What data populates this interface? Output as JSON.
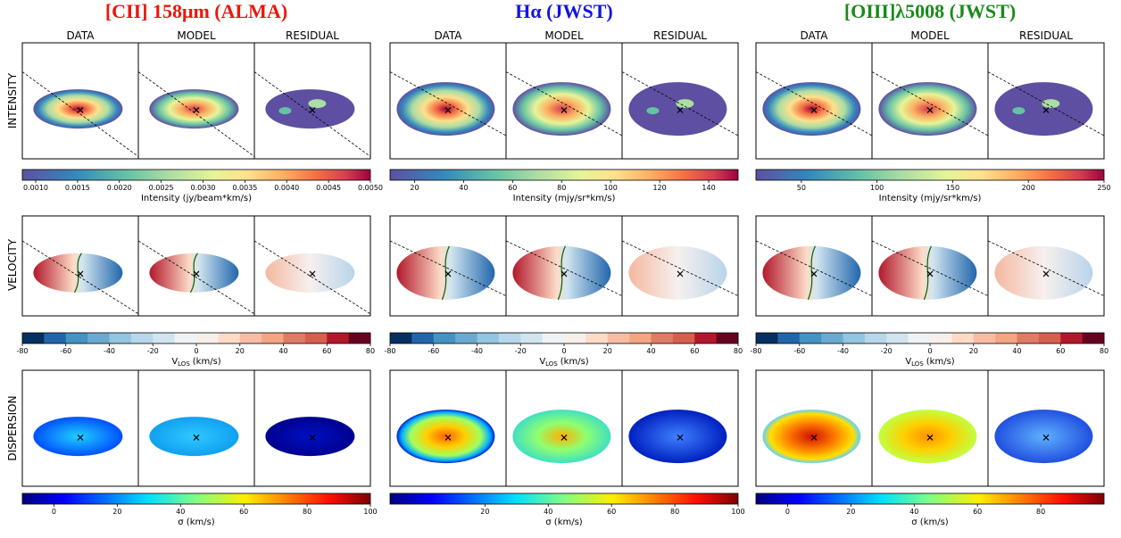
{
  "figure": {
    "rows": [
      "INTENSITY",
      "VELOCITY",
      "DISPERSION"
    ],
    "groups": [
      {
        "title": "[CII] 158μm (ALMA)",
        "title_color": "#e8180c",
        "columns": [
          "DATA",
          "MODEL",
          "RESIDUAL"
        ],
        "colorbars": [
          {
            "label": "Intensity (jy/beam*km/s)",
            "lim": [
              0.00084,
              0.005
            ],
            "ticks": [
              {
                "value": 0.001,
                "label": "0.0010"
              },
              {
                "value": 0.0015,
                "label": "0.0015"
              },
              {
                "value": 0.002,
                "label": "0.0020"
              },
              {
                "value": 0.0025,
                "label": "0.0025"
              },
              {
                "value": 0.003,
                "label": "0.0030"
              },
              {
                "value": 0.0035,
                "label": "0.0035"
              },
              {
                "value": 0.004,
                "label": "0.0040"
              },
              {
                "value": 0.0045,
                "label": "0.0045"
              },
              {
                "value": 0.005,
                "label": "0.0050"
              }
            ]
          },
          {
            "label": "V",
            "label_sub": "LOS",
            "label_unit": "(km/s)",
            "lim": [
              -80,
              80
            ],
            "ticks": [
              -80,
              -60,
              -40,
              -20,
              0,
              20,
              40,
              60,
              80
            ]
          },
          {
            "label": "σ (km/s)",
            "lim": [
              -10,
              100
            ],
            "ticks": [
              0,
              20,
              40,
              60,
              80,
              100
            ]
          }
        ]
      },
      {
        "title": "Hα (JWST)",
        "title_color": "#1414e0",
        "columns": [
          "DATA",
          "MODEL",
          "RESIDUAL"
        ],
        "colorbars": [
          {
            "label": "Intensity (mjy/sr*km/s)",
            "lim": [
              10,
              152
            ],
            "ticks": [
              20,
              40,
              60,
              80,
              100,
              120,
              140
            ]
          },
          {
            "label": "V",
            "label_sub": "LOS",
            "label_unit": "(km/s)",
            "lim": [
              -80,
              80
            ],
            "ticks": [
              -80,
              -60,
              -40,
              -20,
              0,
              20,
              40,
              60,
              80
            ]
          },
          {
            "label": "σ (km/s)",
            "lim": [
              -10,
              100
            ],
            "ticks": [
              20,
              40,
              60,
              80,
              100
            ]
          }
        ]
      },
      {
        "title": "[OIII]λ5008 (JWST)",
        "title_color": "#1a8a1a",
        "columns": [
          "DATA",
          "MODEL",
          "RESIDUAL"
        ],
        "colorbars": [
          {
            "label": "Intensity (mjy/sr*km/s)",
            "lim": [
              20,
              250
            ],
            "ticks": [
              50,
              100,
              150,
              200,
              250
            ]
          },
          {
            "label": "V",
            "label_sub": "LOS",
            "label_unit": "(km/s)",
            "lim": [
              -80,
              80
            ],
            "ticks": [
              -80,
              -60,
              -40,
              -20,
              0,
              20,
              40,
              60,
              80
            ]
          },
          {
            "label": "σ (km/s)",
            "lim": [
              -10,
              100
            ],
            "ticks": [
              0,
              20,
              40,
              60,
              80
            ]
          }
        ]
      }
    ]
  }
}
